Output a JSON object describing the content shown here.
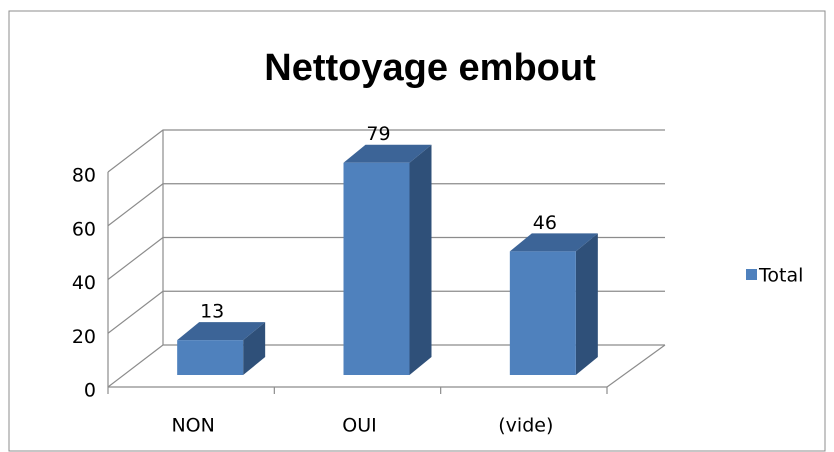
{
  "chart_data": {
    "type": "bar3d",
    "title": "Nettoyage embout",
    "categories": [
      "NON",
      "OUI",
      "(vide)"
    ],
    "series": [
      {
        "name": "Total",
        "color": "#4f81bd",
        "values": [
          13,
          79,
          46
        ]
      }
    ],
    "ylim": [
      0,
      80
    ],
    "yticks": [
      0,
      20,
      40,
      60,
      80
    ],
    "grid": true,
    "legend": "right"
  }
}
